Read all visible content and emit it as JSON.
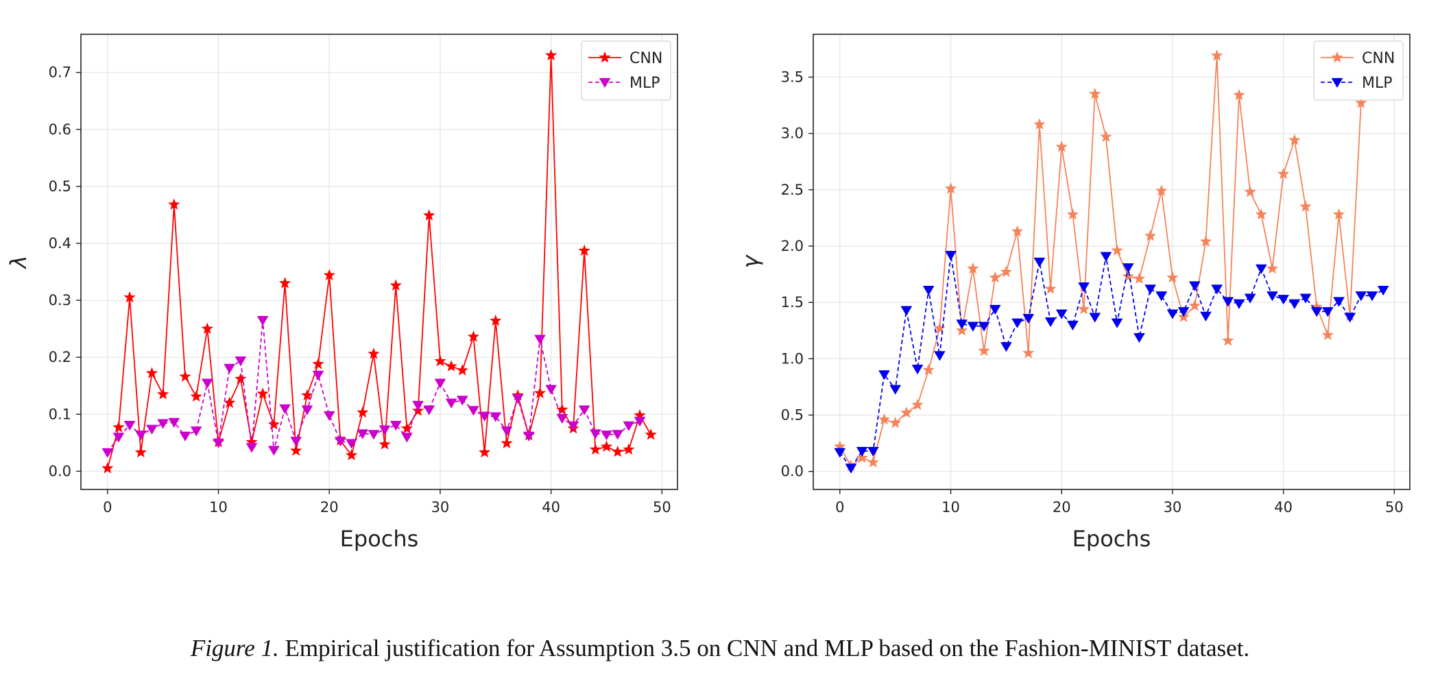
{
  "chart_data": [
    {
      "type": "line",
      "xlabel": "Epochs",
      "ylabel": "λ",
      "xlim": [
        -2.4,
        51.4
      ],
      "ylim": [
        -0.032,
        0.767
      ],
      "xticks": [
        0,
        10,
        20,
        30,
        40,
        50
      ],
      "yticks": [
        0.0,
        0.1,
        0.2,
        0.3,
        0.4,
        0.5,
        0.6,
        0.7
      ],
      "xtick_labels": [
        "0",
        "10",
        "20",
        "30",
        "40",
        "50"
      ],
      "ytick_labels": [
        "0.0",
        "0.1",
        "0.2",
        "0.3",
        "0.4",
        "0.5",
        "0.6",
        "0.7"
      ],
      "grid": true,
      "legend_position": "top-right",
      "series": [
        {
          "name": "CNN",
          "color": "#ff0000",
          "marker": "star",
          "linestyle": "solid",
          "x": [
            0,
            1,
            2,
            3,
            4,
            5,
            6,
            7,
            8,
            9,
            10,
            11,
            12,
            13,
            14,
            15,
            16,
            17,
            18,
            19,
            20,
            21,
            22,
            23,
            24,
            25,
            26,
            27,
            28,
            29,
            30,
            31,
            32,
            33,
            34,
            35,
            36,
            37,
            38,
            39,
            40,
            41,
            42,
            43,
            44,
            45,
            46,
            47,
            48,
            49
          ],
          "values": [
            0.005,
            0.077,
            0.305,
            0.033,
            0.172,
            0.135,
            0.468,
            0.166,
            0.131,
            0.25,
            0.051,
            0.12,
            0.162,
            0.051,
            0.136,
            0.082,
            0.33,
            0.036,
            0.133,
            0.188,
            0.344,
            0.054,
            0.028,
            0.103,
            0.206,
            0.047,
            0.326,
            0.075,
            0.106,
            0.449,
            0.193,
            0.184,
            0.177,
            0.236,
            0.033,
            0.264,
            0.049,
            0.133,
            0.063,
            0.137,
            0.73,
            0.108,
            0.075,
            0.387,
            0.038,
            0.043,
            0.034,
            0.038,
            0.098,
            0.064
          ]
        },
        {
          "name": "MLP",
          "color": "#cc00cc",
          "marker": "triangle-down",
          "linestyle": "dashed",
          "x": [
            0,
            1,
            2,
            3,
            4,
            5,
            6,
            7,
            8,
            9,
            10,
            11,
            12,
            13,
            14,
            15,
            16,
            17,
            18,
            19,
            20,
            21,
            22,
            23,
            24,
            25,
            26,
            27,
            28,
            29,
            30,
            31,
            32,
            33,
            34,
            35,
            36,
            37,
            38,
            39,
            40,
            41,
            42,
            43,
            44,
            45,
            46,
            47,
            48
          ],
          "values": [
            0.033,
            0.06,
            0.081,
            0.064,
            0.074,
            0.084,
            0.086,
            0.062,
            0.071,
            0.155,
            0.05,
            0.181,
            0.194,
            0.042,
            0.265,
            0.037,
            0.11,
            0.053,
            0.108,
            0.169,
            0.098,
            0.053,
            0.049,
            0.066,
            0.065,
            0.073,
            0.081,
            0.06,
            0.116,
            0.108,
            0.155,
            0.12,
            0.125,
            0.107,
            0.097,
            0.096,
            0.071,
            0.128,
            0.062,
            0.232,
            0.144,
            0.093,
            0.08,
            0.108,
            0.066,
            0.064,
            0.065,
            0.08,
            0.088
          ]
        }
      ]
    },
    {
      "type": "line",
      "xlabel": "Epochs",
      "ylabel": "γ",
      "xlim": [
        -2.4,
        51.4
      ],
      "ylim": [
        -0.16,
        3.88
      ],
      "xticks": [
        0,
        10,
        20,
        30,
        40,
        50
      ],
      "yticks": [
        0.0,
        0.5,
        1.0,
        1.5,
        2.0,
        2.5,
        3.0,
        3.5
      ],
      "xtick_labels": [
        "0",
        "10",
        "20",
        "30",
        "40",
        "50"
      ],
      "ytick_labels": [
        "0.0",
        "0.5",
        "1.0",
        "1.5",
        "2.0",
        "2.5",
        "3.0",
        "3.5"
      ],
      "grid": true,
      "legend_position": "top-right",
      "series": [
        {
          "name": "CNN",
          "color": "#f4845a",
          "marker": "star",
          "linestyle": "solid",
          "x": [
            0,
            1,
            2,
            3,
            4,
            5,
            6,
            7,
            8,
            9,
            10,
            11,
            12,
            13,
            14,
            15,
            16,
            17,
            18,
            19,
            20,
            21,
            22,
            23,
            24,
            25,
            26,
            27,
            28,
            29,
            30,
            31,
            32,
            33,
            34,
            35,
            36,
            37,
            38,
            39,
            40,
            41,
            42,
            43,
            44,
            45,
            46,
            47
          ],
          "values": [
            0.22,
            0.05,
            0.12,
            0.08,
            0.46,
            0.43,
            0.52,
            0.59,
            0.9,
            1.27,
            2.51,
            1.25,
            1.8,
            1.07,
            1.72,
            1.77,
            2.13,
            1.05,
            3.08,
            1.62,
            2.88,
            2.28,
            1.44,
            3.35,
            2.97,
            1.96,
            1.73,
            1.71,
            2.09,
            2.49,
            1.72,
            1.37,
            1.47,
            2.04,
            3.69,
            1.16,
            3.34,
            2.48,
            2.28,
            1.8,
            2.64,
            2.94,
            2.35,
            1.46,
            1.21,
            2.28,
            1.38,
            3.27
          ]
        },
        {
          "name": "MLP",
          "color": "#0000ee",
          "marker": "triangle-down",
          "linestyle": "dashed",
          "x": [
            0,
            1,
            2,
            3,
            4,
            5,
            6,
            7,
            8,
            9,
            10,
            11,
            12,
            13,
            14,
            15,
            16,
            17,
            18,
            19,
            20,
            21,
            22,
            23,
            24,
            25,
            26,
            27,
            28,
            29,
            30,
            31,
            32,
            33,
            34,
            35,
            36,
            37,
            38,
            39,
            40,
            41,
            42,
            43,
            44,
            45,
            46,
            47,
            48,
            49
          ],
          "values": [
            0.17,
            0.03,
            0.18,
            0.18,
            0.86,
            0.73,
            1.43,
            0.91,
            1.61,
            1.03,
            1.92,
            1.31,
            1.29,
            1.29,
            1.44,
            1.11,
            1.32,
            1.36,
            1.86,
            1.33,
            1.4,
            1.3,
            1.64,
            1.37,
            1.91,
            1.32,
            1.81,
            1.19,
            1.62,
            1.56,
            1.4,
            1.42,
            1.65,
            1.38,
            1.62,
            1.51,
            1.49,
            1.54,
            1.8,
            1.56,
            1.53,
            1.49,
            1.54,
            1.42,
            1.42,
            1.51,
            1.37,
            1.56,
            1.56,
            1.61
          ]
        }
      ]
    }
  ],
  "caption": {
    "label": "Figure 1.",
    "text": " Empirical justification for Assumption 3.5 on CNN and MLP based on the Fashion-MINIST dataset."
  }
}
